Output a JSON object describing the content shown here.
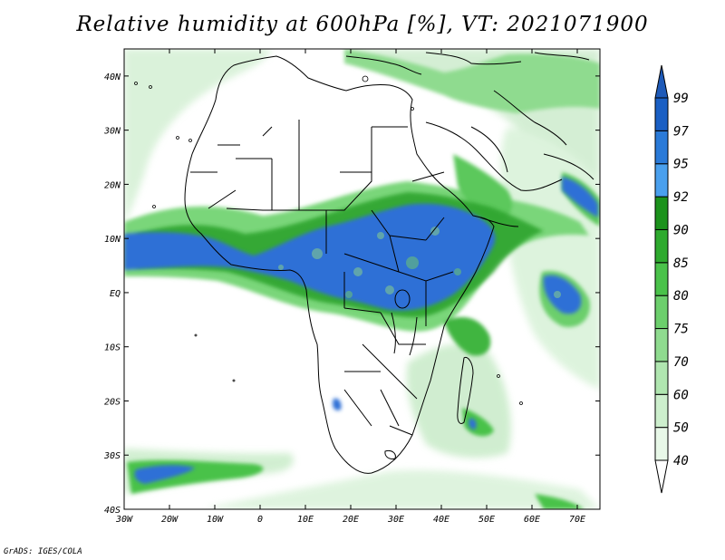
{
  "title": "Relative humidity at 600hPa [%], VT: 2021071900",
  "credit": "GrADS: IGES/COLA",
  "map": {
    "variable": "Relative humidity",
    "level": "600hPa",
    "units": "%",
    "valid_time": "2021071900",
    "lon_range": [
      -30,
      75
    ],
    "lat_range": [
      -40,
      45
    ],
    "lon_ticks": [
      {
        "value": -30,
        "label": "30W"
      },
      {
        "value": -20,
        "label": "20W"
      },
      {
        "value": -10,
        "label": "10W"
      },
      {
        "value": 0,
        "label": "0"
      },
      {
        "value": 10,
        "label": "10E"
      },
      {
        "value": 20,
        "label": "20E"
      },
      {
        "value": 30,
        "label": "30E"
      },
      {
        "value": 40,
        "label": "40E"
      },
      {
        "value": 50,
        "label": "50E"
      },
      {
        "value": 60,
        "label": "60E"
      },
      {
        "value": 70,
        "label": "70E"
      }
    ],
    "lat_ticks": [
      {
        "value": 40,
        "label": "40N"
      },
      {
        "value": 30,
        "label": "30N"
      },
      {
        "value": 20,
        "label": "20N"
      },
      {
        "value": 10,
        "label": "10N"
      },
      {
        "value": 0,
        "label": "EQ"
      },
      {
        "value": -10,
        "label": "10S"
      },
      {
        "value": -20,
        "label": "20S"
      },
      {
        "value": -30,
        "label": "30S"
      },
      {
        "value": -40,
        "label": "40S"
      }
    ]
  },
  "colorbar": {
    "levels": [
      "40",
      "50",
      "60",
      "70",
      "75",
      "80",
      "85",
      "90",
      "92",
      "95",
      "97",
      "99"
    ],
    "colors": [
      "#ffffff",
      "#e8f8e8",
      "#cdefcd",
      "#b0e6b0",
      "#8fdb8f",
      "#6ccf6c",
      "#4ac24a",
      "#2eaa2e",
      "#1c921c",
      "#4aa0ee",
      "#2a7ad8",
      "#1a5fc4",
      "#1e5ab8"
    ]
  },
  "colors": {
    "moist_blue": "#2f6fd6",
    "green_dark": "#2a9a2a",
    "green_mid": "#63c963",
    "green_light": "#c4ecc4",
    "coast": "#000000"
  }
}
